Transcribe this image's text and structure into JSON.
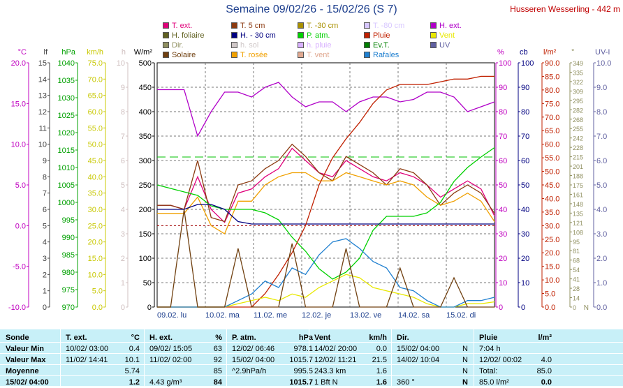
{
  "title": "Semaine 09/02/26 - 15/02/26 (S 7)",
  "station": "Husseren Wesserling - 442 m",
  "legend": [
    {
      "label": "T. ext.",
      "color": "#e0007a"
    },
    {
      "label": "T. 5 cm",
      "color": "#8b3a10"
    },
    {
      "label": "T. -30 cm",
      "color": "#a89000"
    },
    {
      "label": "T. -80 cm",
      "color": "#d8c8ff"
    },
    {
      "label": "H. ext.",
      "color": "#b000c8"
    },
    {
      "label": "H. foliaire",
      "color": "#606020"
    },
    {
      "label": "H. - 30 cm",
      "color": "#000080"
    },
    {
      "label": "P. atm.",
      "color": "#00d000"
    },
    {
      "label": "Pluie",
      "color": "#c02000"
    },
    {
      "label": "Vent",
      "color": "#e8e800"
    },
    {
      "label": "Dir.",
      "color": "#909060"
    },
    {
      "label": "h. sol",
      "color": "#d0c8c8"
    },
    {
      "label": "h. pluie",
      "color": "#d8b0ff"
    },
    {
      "label": "Ev.T.",
      "color": "#008000"
    },
    {
      "label": "UV",
      "color": "#6060a0"
    },
    {
      "label": "Solaire",
      "color": "#704010"
    },
    {
      "label": "T. rosée",
      "color": "#f0a000"
    },
    {
      "label": "T. vent",
      "color": "#e0a890"
    },
    {
      "label": "Rafales",
      "color": "#2080d0"
    }
  ],
  "axes_left": [
    {
      "unit": "°C",
      "color": "#c000c0",
      "ticks": [
        "20.0",
        "15.0",
        "10.0",
        "5.0",
        "0.0",
        "-5.0",
        "-10.0"
      ]
    },
    {
      "unit": "lf",
      "color": "#404040",
      "ticks": [
        "15",
        "14",
        "13",
        "12",
        "11",
        "10",
        "9",
        "8",
        "7",
        "6",
        "5",
        "4",
        "3",
        "2",
        "1",
        "0"
      ]
    },
    {
      "unit": "hPa",
      "color": "#00a000",
      "ticks": [
        "1040",
        "1035",
        "1030",
        "1025",
        "1020",
        "1015",
        "1010",
        "1005",
        "1000",
        "995",
        "990",
        "985",
        "980",
        "975",
        "970"
      ]
    },
    {
      "unit": "km/h",
      "color": "#c8c800",
      "ticks": [
        "75.0",
        "70.0",
        "65.0",
        "60.0",
        "55.0",
        "50.0",
        "45.0",
        "40.0",
        "35.0",
        "30.0",
        "25.0",
        "20.0",
        "15.0",
        "10.0",
        "5.0",
        "0.0"
      ]
    },
    {
      "unit": "h",
      "color": "#d0c0c0",
      "ticks": [
        "10",
        "9",
        "8",
        "7",
        "6",
        "5",
        "4",
        "3",
        "2",
        "1",
        "0"
      ]
    },
    {
      "unit": "W/m²",
      "color": "#000000",
      "ticks": [
        "500",
        "450",
        "400",
        "350",
        "300",
        "250",
        "200",
        "150",
        "100",
        "50",
        "0"
      ]
    }
  ],
  "axes_right": [
    {
      "unit": "%",
      "color": "#c000c0",
      "ticks": [
        "100",
        "90",
        "80",
        "70",
        "60",
        "50",
        "40",
        "30",
        "20",
        "10",
        "0"
      ]
    },
    {
      "unit": "cb",
      "color": "#000080",
      "ticks": [
        "100",
        "90",
        "80",
        "70",
        "60",
        "50",
        "40",
        "30",
        "20",
        "10",
        "0"
      ]
    },
    {
      "unit": "l/m²",
      "color": "#c02000",
      "ticks": [
        "90.0",
        "85.0",
        "80.0",
        "75.0",
        "70.0",
        "65.0",
        "60.0",
        "55.0",
        "50.0",
        "45.0",
        "40.0",
        "35.0",
        "30.0",
        "25.0",
        "20.0",
        "15.0",
        "10.0",
        "5.0",
        "0.0"
      ]
    },
    {
      "unit": "°",
      "color": "#909060",
      "ticks": [
        "349",
        "335",
        "322",
        "309",
        "295",
        "282",
        "268",
        "255",
        "242",
        "228",
        "215",
        "201",
        "188",
        "175",
        "161",
        "148",
        "135",
        "121",
        "108",
        "95",
        "81",
        "68",
        "54",
        "41",
        "28",
        "14",
        "0"
      ]
    },
    {
      "unit": "UV-I",
      "color": "#6060a0",
      "ticks": [
        "10.0",
        "9.0",
        "8.0",
        "7.0",
        "6.0",
        "5.0",
        "4.0",
        "3.0",
        "2.0",
        "1.0",
        "0.0"
      ]
    }
  ],
  "right_axis_extra": "N",
  "day_labels": [
    "09.02. lu",
    "10.02. ma",
    "11.02. me",
    "12.02. je",
    "13.02. ve",
    "14.02. sa",
    "15.02. di"
  ],
  "table": {
    "row_labels": [
      "Sonde",
      "Valeur Min",
      "Valeur Max",
      "Moyenne",
      "15/02/ 04:00"
    ],
    "text_ext": {
      "title": "T. ext.",
      "unit": "°C",
      "rows": [
        [
          "",
          ""
        ],
        [
          "10/02/ 03:00",
          "0.4"
        ],
        [
          "11/02/ 14:41",
          "10.1"
        ],
        [
          "",
          "5.74"
        ],
        [
          "",
          "1.2"
        ]
      ]
    },
    "h_ext": {
      "title": "H. ext.",
      "unit": "%",
      "rows": [
        [
          "",
          ""
        ],
        [
          "09/02/ 15:05",
          "63"
        ],
        [
          "11/02/ 02:00",
          "92"
        ],
        [
          "",
          "85"
        ],
        [
          "4.43 g/m³",
          "84"
        ]
      ]
    },
    "p_atm": {
      "title": "P. atm.",
      "unit": "hPa",
      "rows": [
        [
          "",
          ""
        ],
        [
          "12/02/ 06:46",
          "978.1"
        ],
        [
          "15/02/ 04:00",
          "1015.7"
        ],
        [
          "^2.9hPa/h",
          "995.5"
        ],
        [
          "",
          "1015.7"
        ]
      ]
    },
    "vent": {
      "title": "Vent",
      "unit": "km/h",
      "rows": [
        [
          "",
          ""
        ],
        [
          "14/02/ 20:00",
          "0.0"
        ],
        [
          "12/02/ 11:21",
          "21.5"
        ],
        [
          "243.3 km",
          "1.6"
        ],
        [
          "1 Bft N",
          "1.6"
        ]
      ]
    },
    "dir": {
      "title": "Dir.",
      "unit": "",
      "rows": [
        [
          "",
          ""
        ],
        [
          "15/02/ 04:00",
          "N"
        ],
        [
          "14/02/ 10:04",
          "N"
        ],
        [
          "",
          "N"
        ],
        [
          "360 °",
          "N"
        ]
      ]
    },
    "pluie": {
      "title": "Pluie",
      "unit": "l/m²",
      "rows": [
        [
          "",
          ""
        ],
        [
          "7:04 h",
          ""
        ],
        [
          "12/02/ 00:02",
          "4.0"
        ],
        [
          "Total:",
          "85.0"
        ],
        [
          "85.0 l/m²",
          "0.0"
        ]
      ]
    }
  },
  "chart_data": {
    "type": "line",
    "x": [
      "09/02 00h",
      "09/02 06h",
      "09/02 12h",
      "09/02 18h",
      "10/02 00h",
      "10/02 06h",
      "10/02 12h",
      "10/02 18h",
      "11/02 00h",
      "11/02 06h",
      "11/02 12h",
      "11/02 18h",
      "12/02 00h",
      "12/02 06h",
      "12/02 12h",
      "12/02 18h",
      "13/02 00h",
      "13/02 06h",
      "13/02 12h",
      "13/02 18h",
      "14/02 00h",
      "14/02 06h",
      "14/02 12h",
      "14/02 18h",
      "15/02 00h",
      "15/02 04h"
    ],
    "series": [
      {
        "name": "T. ext.",
        "unit": "°C",
        "color": "#e0007a",
        "values": [
          2.5,
          2.5,
          2.0,
          6.0,
          2.0,
          0.4,
          4.0,
          4.5,
          6.0,
          7.0,
          9.5,
          8.0,
          6.5,
          6.0,
          8.0,
          7.0,
          6.0,
          5.5,
          6.5,
          6.0,
          5.0,
          3.5,
          4.5,
          5.5,
          4.5,
          1.2
        ]
      },
      {
        "name": "T. 5 cm",
        "unit": "°C",
        "color": "#8b3a10",
        "values": [
          2.5,
          2.5,
          2.0,
          8.0,
          1.0,
          0.5,
          5.0,
          5.5,
          7.0,
          8.0,
          10.0,
          8.5,
          6.5,
          5.5,
          8.5,
          7.5,
          6.5,
          5.0,
          7.0,
          6.5,
          5.0,
          2.5,
          4.0,
          5.0,
          4.0,
          1.5
        ]
      },
      {
        "name": "T. rosée",
        "unit": "°C",
        "color": "#f0a000",
        "values": [
          1.5,
          1.5,
          1.5,
          3.5,
          0.0,
          -1.0,
          3.0,
          3.0,
          5.0,
          6.0,
          6.5,
          6.5,
          5.5,
          5.5,
          6.5,
          6.0,
          5.5,
          5.0,
          5.5,
          5.0,
          3.5,
          2.5,
          3.0,
          4.0,
          3.0,
          0.5
        ]
      },
      {
        "name": "H. ext.",
        "unit": "%",
        "color": "#b000c8",
        "values": [
          89,
          89,
          89,
          70,
          80,
          88,
          88,
          86,
          90,
          92,
          86,
          82,
          84,
          84,
          80,
          84,
          86,
          86,
          84,
          85,
          88,
          88,
          86,
          80,
          82,
          84
        ]
      },
      {
        "name": "P. atm.",
        "unit": "hPa",
        "color": "#00d000",
        "values": [
          1005,
          1004,
          1003,
          1002,
          999,
          998,
          998,
          998,
          997,
          995,
          990,
          986,
          981,
          978,
          980,
          984,
          992,
          996,
          996,
          996,
          997,
          1000,
          1006,
          1010,
          1013,
          1015.7
        ]
      },
      {
        "name": "H. - 30 cm",
        "unit": "cb",
        "color": "#000080",
        "values": [
          40,
          40,
          40,
          42,
          42,
          40,
          35,
          34,
          34,
          34,
          34,
          34,
          34,
          34,
          34,
          34,
          34,
          34,
          34,
          34,
          34,
          34,
          34,
          34,
          34,
          34
        ]
      },
      {
        "name": "Pluie",
        "unit": "l/m²",
        "color": "#c02000",
        "values": [
          0,
          0,
          0,
          0,
          0,
          0,
          0,
          0,
          5,
          12,
          20,
          30,
          45,
          55,
          62,
          68,
          75,
          80,
          82,
          82,
          82,
          83,
          84,
          84,
          85,
          85
        ]
      },
      {
        "name": "Vent",
        "unit": "km/h",
        "color": "#e8e800",
        "values": [
          0,
          0,
          0,
          0,
          0,
          0,
          1,
          2,
          3,
          2,
          4,
          3,
          6,
          8,
          10,
          9,
          6,
          5,
          4,
          3,
          1,
          0,
          0,
          1,
          1,
          1.6
        ]
      },
      {
        "name": "Rafales",
        "unit": "km/h",
        "color": "#2080d0",
        "values": [
          0,
          0,
          0,
          0,
          0,
          0,
          2,
          4,
          8,
          6,
          12,
          10,
          16,
          20,
          21,
          18,
          14,
          12,
          6,
          5,
          2,
          0,
          0,
          2,
          2,
          3
        ]
      },
      {
        "name": "Solaire",
        "unit": "W/m²",
        "color": "#704010",
        "values": [
          0,
          0,
          200,
          0,
          0,
          0,
          120,
          0,
          0,
          0,
          130,
          0,
          0,
          0,
          120,
          0,
          0,
          0,
          80,
          0,
          0,
          0,
          60,
          0,
          0,
          0
        ]
      }
    ],
    "ylim_temp": [
      -10,
      20
    ],
    "ylim_pct": [
      0,
      100
    ],
    "ylim_hpa": [
      970,
      1040
    ],
    "ylim_kmh": [
      0,
      75
    ],
    "ylim_wm2": [
      0,
      500
    ],
    "ylim_lm2": [
      0,
      90
    ],
    "grid": true
  }
}
